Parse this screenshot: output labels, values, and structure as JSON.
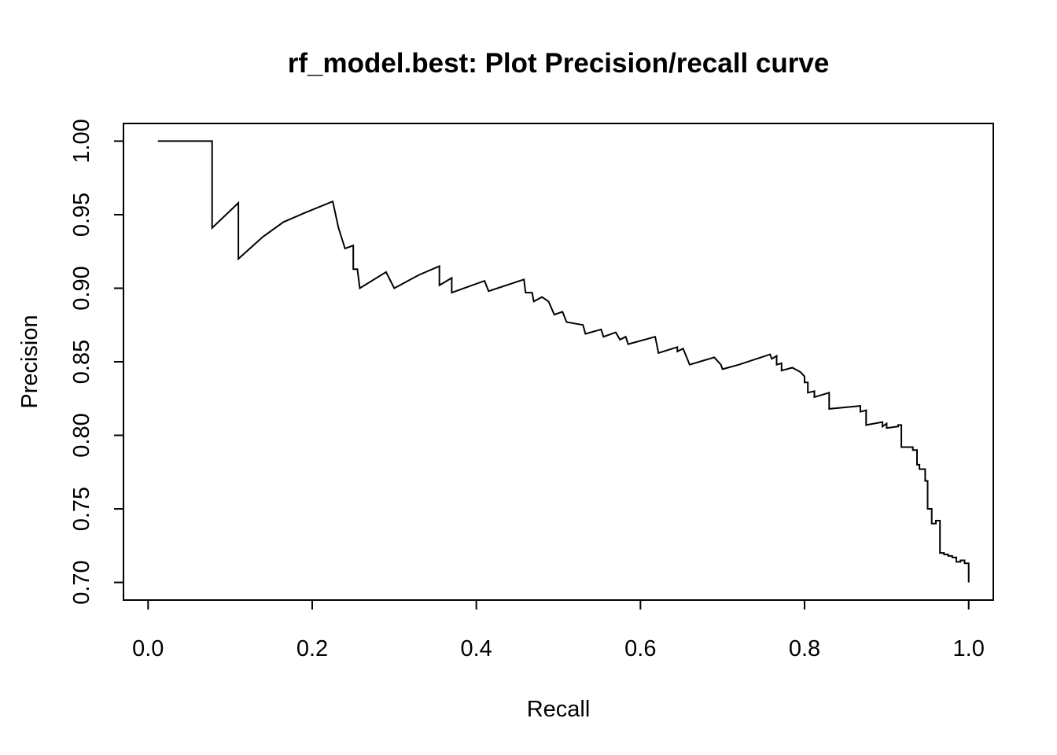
{
  "chart_data": {
    "type": "line",
    "title": "rf_model.best: Plot Precision/recall curve",
    "xlabel": "Recall",
    "ylabel": "Precision",
    "xlim": [
      -0.03,
      1.03
    ],
    "ylim": [
      0.688,
      1.012
    ],
    "x_ticks": [
      0.0,
      0.2,
      0.4,
      0.6,
      0.8,
      1.0
    ],
    "x_tick_labels": [
      "0.0",
      "0.2",
      "0.4",
      "0.6",
      "0.8",
      "1.0"
    ],
    "y_ticks": [
      0.7,
      0.75,
      0.8,
      0.85,
      0.9,
      0.95,
      1.0
    ],
    "y_tick_labels": [
      "0.70",
      "0.75",
      "0.80",
      "0.85",
      "0.90",
      "0.95",
      "1.00"
    ],
    "grid": false,
    "legend": "none",
    "series": [
      {
        "name": "Precision/recall curve",
        "points": [
          [
            0.012,
            1.0
          ],
          [
            0.078,
            1.0
          ],
          [
            0.078,
            0.941
          ],
          [
            0.11,
            0.958
          ],
          [
            0.11,
            0.92
          ],
          [
            0.14,
            0.935
          ],
          [
            0.165,
            0.945
          ],
          [
            0.19,
            0.951
          ],
          [
            0.225,
            0.959
          ],
          [
            0.232,
            0.941
          ],
          [
            0.24,
            0.927
          ],
          [
            0.25,
            0.929
          ],
          [
            0.25,
            0.913
          ],
          [
            0.255,
            0.913
          ],
          [
            0.258,
            0.9
          ],
          [
            0.29,
            0.911
          ],
          [
            0.3,
            0.9
          ],
          [
            0.33,
            0.909
          ],
          [
            0.355,
            0.915
          ],
          [
            0.355,
            0.902
          ],
          [
            0.37,
            0.907
          ],
          [
            0.37,
            0.897
          ],
          [
            0.41,
            0.905
          ],
          [
            0.415,
            0.898
          ],
          [
            0.458,
            0.906
          ],
          [
            0.46,
            0.897
          ],
          [
            0.468,
            0.897
          ],
          [
            0.47,
            0.891
          ],
          [
            0.48,
            0.894
          ],
          [
            0.488,
            0.891
          ],
          [
            0.495,
            0.882
          ],
          [
            0.505,
            0.884
          ],
          [
            0.51,
            0.877
          ],
          [
            0.53,
            0.875
          ],
          [
            0.533,
            0.869
          ],
          [
            0.552,
            0.872
          ],
          [
            0.555,
            0.867
          ],
          [
            0.57,
            0.87
          ],
          [
            0.575,
            0.865
          ],
          [
            0.582,
            0.867
          ],
          [
            0.585,
            0.862
          ],
          [
            0.618,
            0.867
          ],
          [
            0.622,
            0.856
          ],
          [
            0.645,
            0.86
          ],
          [
            0.645,
            0.857
          ],
          [
            0.652,
            0.859
          ],
          [
            0.66,
            0.848
          ],
          [
            0.69,
            0.853
          ],
          [
            0.698,
            0.848
          ],
          [
            0.7,
            0.845
          ],
          [
            0.72,
            0.848
          ],
          [
            0.758,
            0.855
          ],
          [
            0.76,
            0.852
          ],
          [
            0.766,
            0.854
          ],
          [
            0.766,
            0.848
          ],
          [
            0.772,
            0.849
          ],
          [
            0.772,
            0.844
          ],
          [
            0.785,
            0.846
          ],
          [
            0.795,
            0.843
          ],
          [
            0.8,
            0.84
          ],
          [
            0.8,
            0.836
          ],
          [
            0.804,
            0.836
          ],
          [
            0.804,
            0.829
          ],
          [
            0.812,
            0.83
          ],
          [
            0.812,
            0.826
          ],
          [
            0.83,
            0.829
          ],
          [
            0.83,
            0.818
          ],
          [
            0.868,
            0.82
          ],
          [
            0.868,
            0.816
          ],
          [
            0.875,
            0.817
          ],
          [
            0.875,
            0.807
          ],
          [
            0.895,
            0.809
          ],
          [
            0.895,
            0.806
          ],
          [
            0.9,
            0.808
          ],
          [
            0.9,
            0.805
          ],
          [
            0.914,
            0.806
          ],
          [
            0.914,
            0.807
          ],
          [
            0.918,
            0.807
          ],
          [
            0.918,
            0.792
          ],
          [
            0.932,
            0.792
          ],
          [
            0.932,
            0.79
          ],
          [
            0.937,
            0.79
          ],
          [
            0.937,
            0.78
          ],
          [
            0.94,
            0.78
          ],
          [
            0.94,
            0.777
          ],
          [
            0.947,
            0.777
          ],
          [
            0.947,
            0.769
          ],
          [
            0.95,
            0.769
          ],
          [
            0.95,
            0.75
          ],
          [
            0.955,
            0.75
          ],
          [
            0.955,
            0.74
          ],
          [
            0.96,
            0.74
          ],
          [
            0.96,
            0.742
          ],
          [
            0.965,
            0.742
          ],
          [
            0.965,
            0.72
          ],
          [
            0.97,
            0.72
          ],
          [
            0.97,
            0.719
          ],
          [
            0.975,
            0.719
          ],
          [
            0.975,
            0.718
          ],
          [
            0.98,
            0.718
          ],
          [
            0.98,
            0.717
          ],
          [
            0.985,
            0.717
          ],
          [
            0.985,
            0.714
          ],
          [
            0.99,
            0.714
          ],
          [
            0.99,
            0.715
          ],
          [
            0.995,
            0.715
          ],
          [
            0.995,
            0.713
          ],
          [
            1.0,
            0.713
          ],
          [
            1.0,
            0.7
          ]
        ]
      }
    ]
  }
}
